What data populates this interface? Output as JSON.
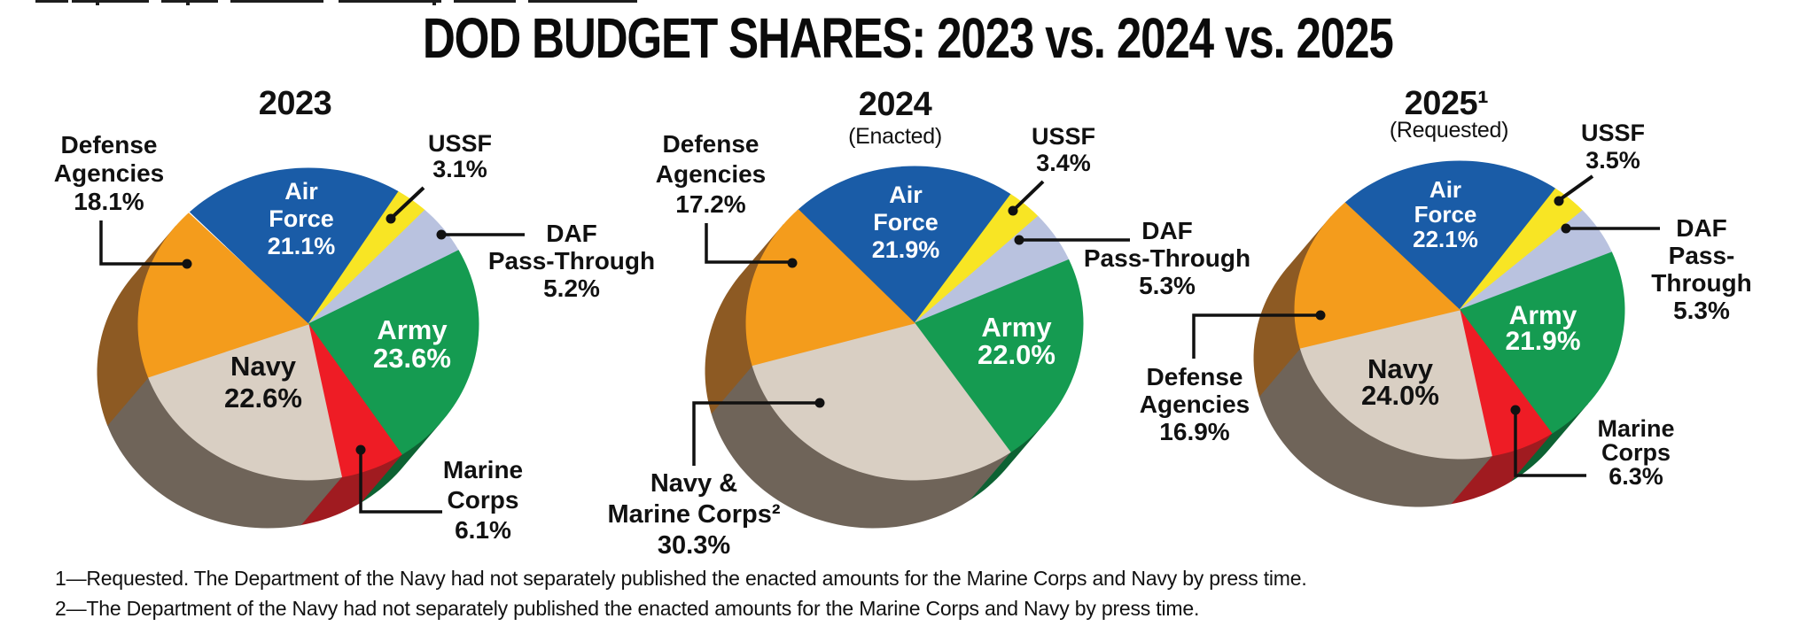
{
  "title": "DOD BUDGET SHARES: 2023 vs. 2024 vs. 2025",
  "footnotes": [
    "1—Requested. The Department of the Navy had not separately published the enacted amounts for the Marine Corps and Navy by press time.",
    "2—The Department of the Navy had not separately published the enacted amounts for the Marine Corps and Navy by press time."
  ],
  "colors": {
    "air_force": "#1A5CA7",
    "ussf": "#F8E524",
    "daf_pass_through": "#B9C2DF",
    "army": "#159B51",
    "marine_corps": "#EE1C25",
    "navy": "#D9CFC3",
    "navy_marine_corps": "#D9CFC3",
    "defense_agencies": "#F49C1C"
  },
  "side_colors": {
    "army": "#0D6233",
    "marine_corps": "#A01B20",
    "navy": "#6F6459",
    "navy_marine_corps": "#6F6459",
    "defense_agencies": "#8D5A23"
  },
  "pies": [
    {
      "title": "2023",
      "subtitle": "",
      "labels": {
        "air_force": "Air\nForce\n21.1%",
        "army": "Army\n23.6%",
        "navy": "Navy\n22.6%",
        "defense_agencies": "Defense\nAgencies\n18.1%",
        "ussf": "USSF\n3.1%",
        "daf_pass_through": "DAF\nPass-Through\n5.2%",
        "marine_corps": "Marine\nCorps\n6.1%"
      }
    },
    {
      "title": "2024",
      "subtitle": "(Enacted)",
      "labels": {
        "air_force": "Air\nForce\n21.9%",
        "army": "Army\n22.0%",
        "defense_agencies": "Defense\nAgencies\n17.2%",
        "ussf": "USSF\n3.4%",
        "daf_pass_through": "DAF\nPass-Through\n5.3%",
        "navy_marine_corps": "Navy &\nMarine Corps²\n30.3%"
      }
    },
    {
      "title": "2025¹",
      "subtitle": "(Requested)",
      "labels": {
        "air_force": "Air\nForce\n22.1%",
        "army": "Army\n21.9%",
        "navy": "Navy\n24.0%",
        "defense_agencies": "Defense\nAgencies\n16.9%",
        "ussf": "USSF\n3.5%",
        "daf_pass_through": "DAF\nPass-Through\n5.3%",
        "marine_corps": "Marine\nCorps\n6.3%"
      }
    }
  ],
  "chart_data": {
    "type": "pie",
    "note": "Three 3D pie charts, slices clockwise from upper-left",
    "charts": [
      {
        "title": "2023",
        "subtitle": "",
        "slices": [
          {
            "key": "air_force",
            "label": "Air Force",
            "pct": 21.1
          },
          {
            "key": "ussf",
            "label": "USSF",
            "pct": 3.1
          },
          {
            "key": "daf_pass_through",
            "label": "DAF Pass-Through",
            "pct": 5.2
          },
          {
            "key": "army",
            "label": "Army",
            "pct": 23.6
          },
          {
            "key": "marine_corps",
            "label": "Marine Corps",
            "pct": 6.1
          },
          {
            "key": "navy",
            "label": "Navy",
            "pct": 22.6
          },
          {
            "key": "defense_agencies",
            "label": "Defense Agencies",
            "pct": 18.1
          }
        ]
      },
      {
        "title": "2024",
        "subtitle": "(Enacted)",
        "slices": [
          {
            "key": "air_force",
            "label": "Air Force",
            "pct": 21.9
          },
          {
            "key": "ussf",
            "label": "USSF",
            "pct": 3.4
          },
          {
            "key": "daf_pass_through",
            "label": "DAF Pass-Through",
            "pct": 5.3
          },
          {
            "key": "army",
            "label": "Army",
            "pct": 22.0
          },
          {
            "key": "navy_marine_corps",
            "label": "Navy & Marine Corps²",
            "pct": 30.3
          },
          {
            "key": "defense_agencies",
            "label": "Defense Agencies",
            "pct": 17.2
          }
        ]
      },
      {
        "title": "2025¹",
        "subtitle": "(Requested)",
        "slices": [
          {
            "key": "air_force",
            "label": "Air Force",
            "pct": 22.1
          },
          {
            "key": "ussf",
            "label": "USSF",
            "pct": 3.5
          },
          {
            "key": "daf_pass_through",
            "label": "DAF Pass-Through",
            "pct": 5.3
          },
          {
            "key": "army",
            "label": "Army",
            "pct": 21.9
          },
          {
            "key": "marine_corps",
            "label": "Marine Corps",
            "pct": 6.3
          },
          {
            "key": "navy",
            "label": "Navy",
            "pct": 24.0
          },
          {
            "key": "defense_agencies",
            "label": "Defense Agencies",
            "pct": 16.9
          }
        ]
      }
    ]
  }
}
